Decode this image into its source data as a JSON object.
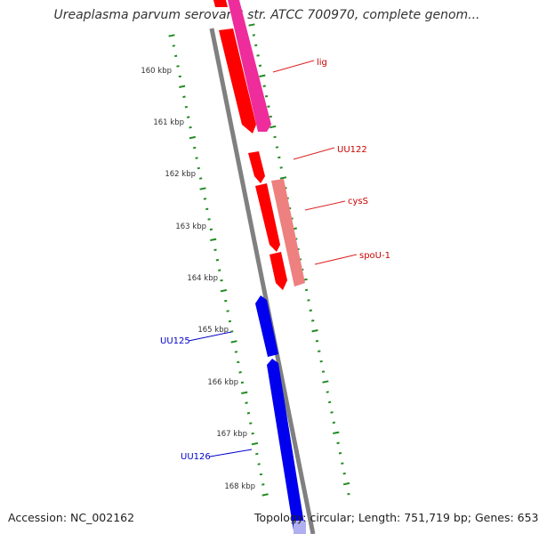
{
  "title": "Ureaplasma parvum serovar 3 str. ATCC 700970, complete genom...",
  "footer": {
    "accession": "Accession: NC_002162",
    "stats": "Topology: circular; Length: 751,719 bp; Genes: 653"
  },
  "colors": {
    "forward_gene": "#ff0000",
    "forward_gene_light": "#ee8080",
    "forward_gene_magenta": "#ee2c9c",
    "reverse_gene": "#0000ee",
    "backbone": "#808080",
    "tick_marks": "#228b22"
  },
  "scale_ticks": [
    "160 kbp",
    "161 kbp",
    "162 kbp",
    "163 kbp",
    "164 kbp",
    "165 kbp",
    "166 kbp",
    "167 kbp",
    "168 kbp"
  ],
  "gene_labels": {
    "lig": "lig",
    "UU122": "UU122",
    "cysS": "cysS",
    "spoU_1": "spoU-1",
    "UU125": "UU125",
    "UU126": "UU126"
  }
}
